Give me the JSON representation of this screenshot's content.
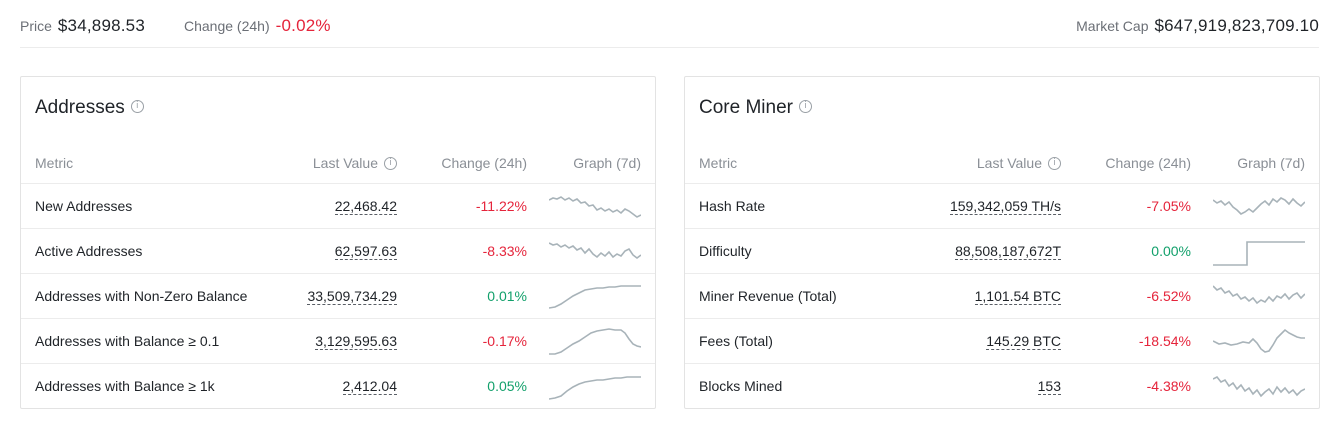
{
  "topbar": {
    "price_label": "Price",
    "price_value": "$34,898.53",
    "change_label": "Change (24h)",
    "change_value": "-0.02%",
    "mcap_label": "Market Cap",
    "mcap_value": "$647,919,823,709.10"
  },
  "colors": {
    "negative": "#e5243b",
    "positive": "#12a06b",
    "sparkline": "#a8b3b9"
  },
  "headers": {
    "metric": "Metric",
    "last": "Last Value",
    "change": "Change (24h)",
    "graph": "Graph (7d)"
  },
  "addresses": {
    "title": "Addresses",
    "rows": [
      {
        "name": "New Addresses",
        "last": "22,468.42",
        "change": "-11.22%"
      },
      {
        "name": "Active Addresses",
        "last": "62,597.63",
        "change": "-8.33%"
      },
      {
        "name": "Addresses with Non-Zero Balance",
        "last": "33,509,734.29",
        "change": "0.01%"
      },
      {
        "name": "Addresses with Balance ≥ 0.1",
        "last": "3,129,595.63",
        "change": "-0.17%"
      },
      {
        "name": "Addresses with Balance ≥ 1k",
        "last": "2,412.04",
        "change": "0.05%"
      }
    ]
  },
  "core": {
    "title": "Core Miner",
    "rows": [
      {
        "name": "Hash Rate",
        "last": "159,342,059 TH/s",
        "change": "-7.05%"
      },
      {
        "name": "Difficulty",
        "last": "88,508,187,672T",
        "change": "0.00%"
      },
      {
        "name": "Miner Revenue (Total)",
        "last": "1,101.54 BTC",
        "change": "-6.52%"
      },
      {
        "name": "Fees (Total)",
        "last": "145.29 BTC",
        "change": "-18.54%"
      },
      {
        "name": "Blocks Mined",
        "last": "153",
        "change": "-4.38%"
      }
    ]
  }
}
